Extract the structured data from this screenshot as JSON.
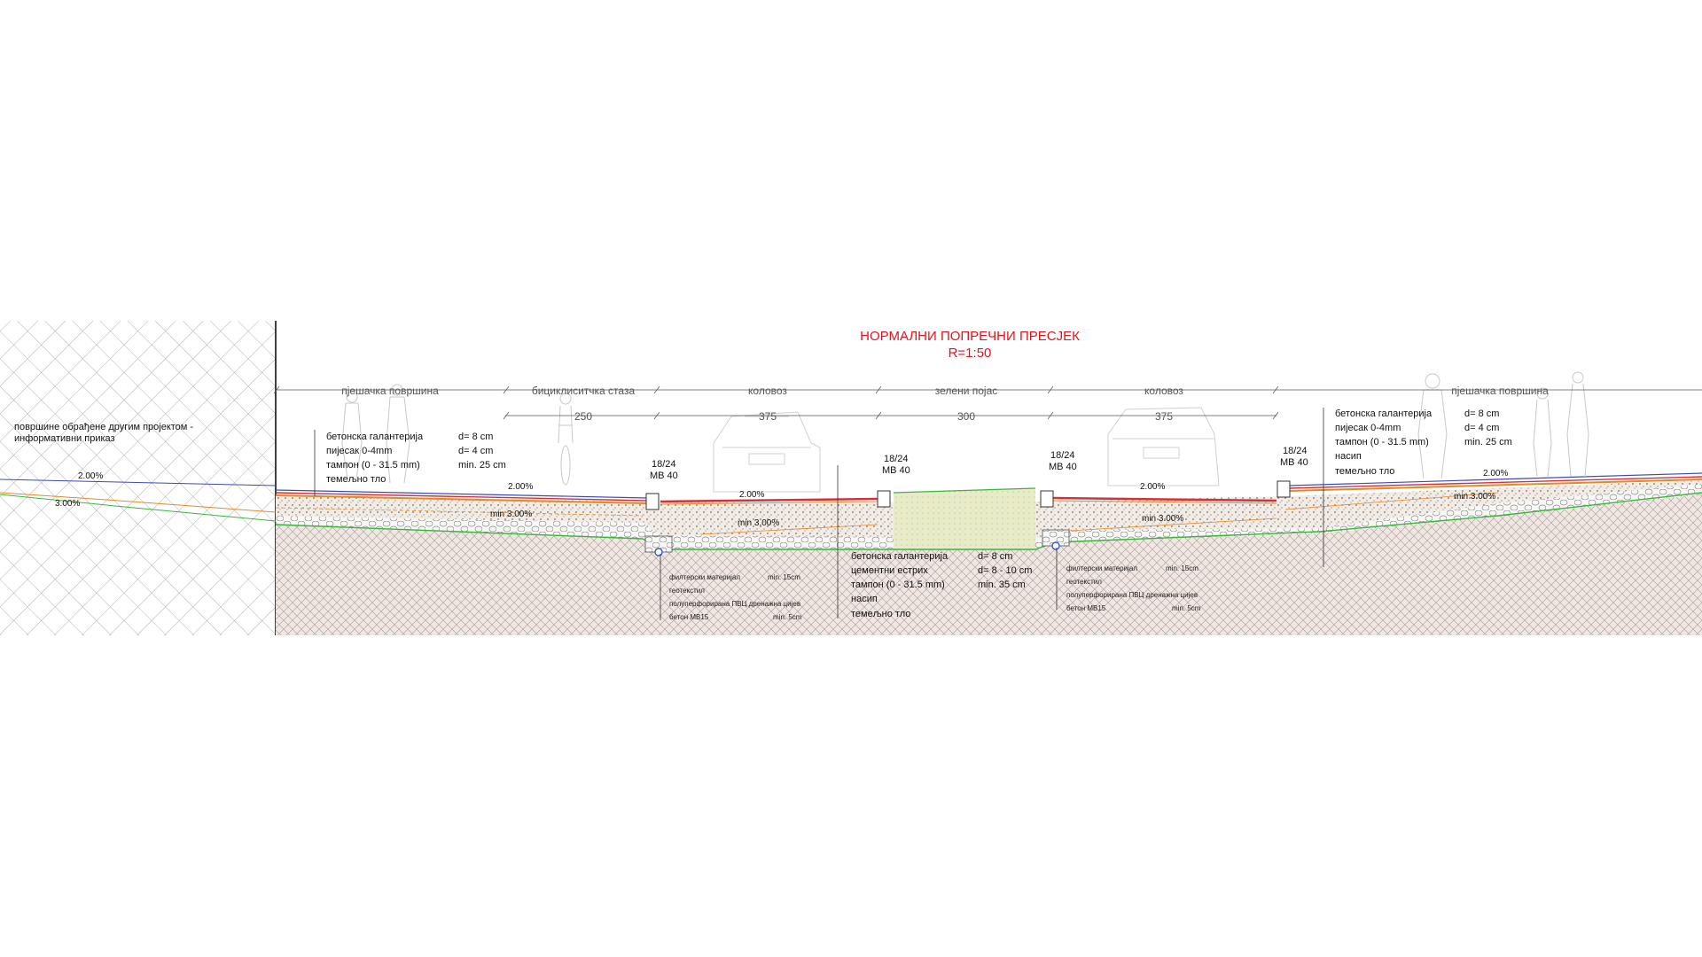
{
  "title": {
    "main": "НОРМАЛНИ ПОПРЕЧНИ ПРЕСЈЕК",
    "scale": "R=1:50",
    "color": "#e0141e"
  },
  "left_note": {
    "line1": "површине обрађене другим пројектом -",
    "line2": "информативни приказ"
  },
  "zones": [
    {
      "label": "пјешачка површина"
    },
    {
      "label": "бициклиситчка стаза",
      "width": "250"
    },
    {
      "label": "коловоз",
      "width": "375"
    },
    {
      "label": "зелени појас",
      "width": "300"
    },
    {
      "label": "коловоз",
      "width": "375"
    },
    {
      "label": "пјешачка површина"
    }
  ],
  "curbs": [
    {
      "size": "18/24",
      "grade": "MB 40"
    },
    {
      "size": "18/24",
      "grade": "MB 40"
    },
    {
      "size": "18/24",
      "grade": "MB 40"
    },
    {
      "size": "18/24",
      "grade": "MB 40"
    }
  ],
  "slopes": {
    "far_left_upper": "2.00%",
    "far_left_lower": "3.00%",
    "sidewalk_left": "2.00%",
    "road_left": "2.00%",
    "road_right": "2.00%",
    "sidewalk_right": "2.00%",
    "subgrade_1": "min 3.00%",
    "subgrade_2": "min 3.00%",
    "subgrade_3": "min 3.00%",
    "subgrade_4": "min 3.00%"
  },
  "layers_sidewalk_left": [
    {
      "name": "бетонска галантерија",
      "value": "d= 8 cm"
    },
    {
      "name": "пијесак 0-4mm",
      "value": "d= 4 cm"
    },
    {
      "name": "тампон (0 - 31.5 mm)",
      "value": "min. 25 cm"
    },
    {
      "name": "темељно тло",
      "value": ""
    }
  ],
  "layers_sidewalk_right": [
    {
      "name": "бетонска галантерија",
      "value": "d= 8 cm"
    },
    {
      "name": "пијесак 0-4mm",
      "value": "d= 4 cm"
    },
    {
      "name": "тампон (0 - 31.5 mm)",
      "value": "min. 25 cm"
    },
    {
      "name": "насип",
      "value": ""
    },
    {
      "name": "темељно тло",
      "value": ""
    }
  ],
  "layers_median": [
    {
      "name": "бетонска галантерија",
      "value": "d= 8 cm"
    },
    {
      "name": "цементни естрих",
      "value": "d= 8 - 10 cm"
    },
    {
      "name": "тампон (0 - 31.5 mm)",
      "value": "min. 35 cm"
    },
    {
      "name": "насип",
      "value": ""
    },
    {
      "name": "темељно тло",
      "value": ""
    }
  ],
  "drain_left": [
    {
      "name": "филтерски материјал",
      "value": "min. 15cm"
    },
    {
      "name": "геотекстил",
      "value": ""
    },
    {
      "name": "полуперфорирана ПВЦ дренажна цијев",
      "value": ""
    },
    {
      "name": "бетон MB15",
      "value": "min. 5cm"
    }
  ],
  "drain_right": [
    {
      "name": "филтерски материјал",
      "value": "min. 15cm"
    },
    {
      "name": "геотекстил",
      "value": ""
    },
    {
      "name": "полуперфорирана ПВЦ дренажна цијев",
      "value": ""
    },
    {
      "name": "бетон MB15",
      "value": "min. 5cm"
    }
  ],
  "colors": {
    "asphalt_red": "#d2323c",
    "subgrade_green": "#3cb43c",
    "sand_orange": "#e08a2a",
    "blue_line": "#3c4bb4",
    "soil": "#c9b6b0"
  }
}
